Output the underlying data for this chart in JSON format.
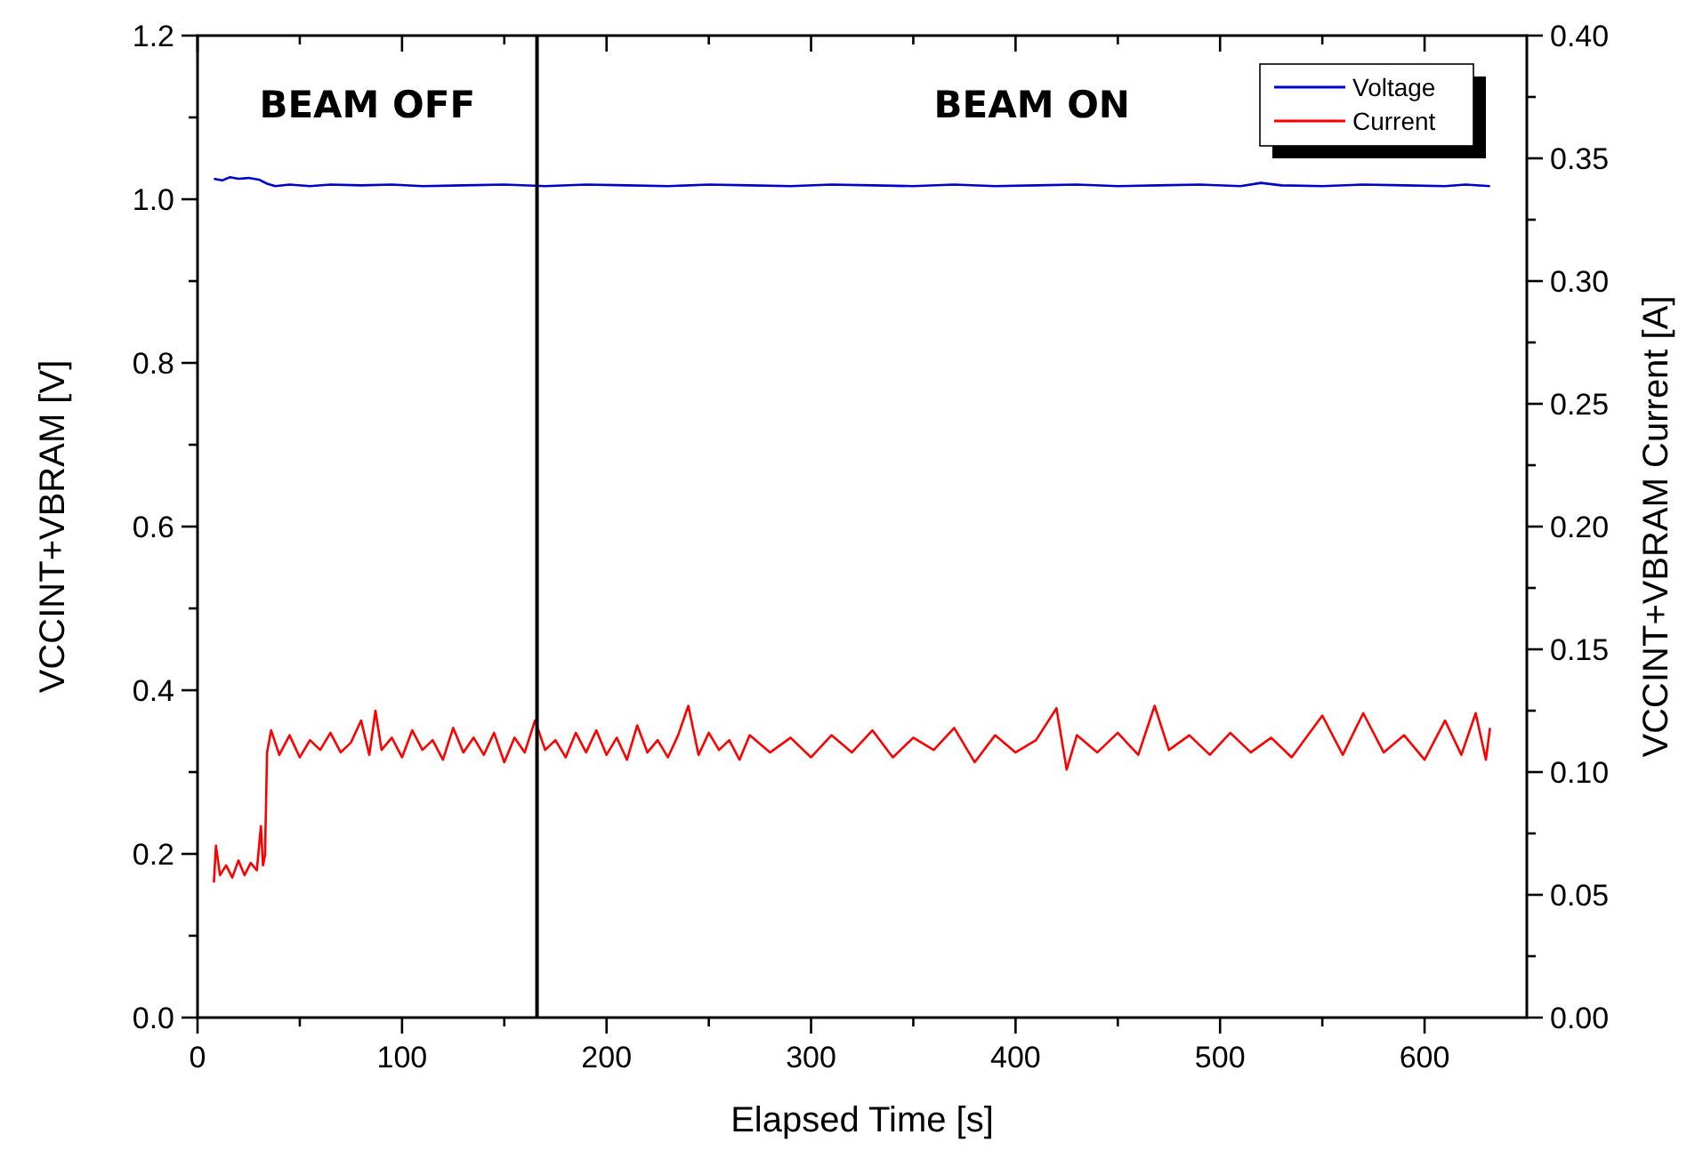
{
  "chart_data": {
    "type": "line",
    "xlabel": "Elapsed Time [s]",
    "ylabel": "VCCINT+VBRAM [V]",
    "y2label": "VCCINT+VBRAM Current [A]",
    "xlim": [
      0,
      650
    ],
    "xticks": [
      0,
      {
        "value": 50,
        "label": null
      },
      100,
      {
        "value": 150,
        "label": null
      },
      200,
      {
        "value": 250,
        "label": null
      },
      300,
      {
        "value": 350,
        "label": null
      },
      400,
      {
        "value": 450,
        "label": null
      },
      500,
      {
        "value": 550,
        "label": null
      },
      600
    ],
    "ylim": [
      0,
      1.2
    ],
    "yticks": [
      {
        "value": 0,
        "label": "0.0"
      },
      {
        "value": 0.1,
        "label": null
      },
      0.2,
      {
        "value": 0.3,
        "label": null
      },
      0.4,
      {
        "value": 0.5,
        "label": null
      },
      0.6,
      {
        "value": 0.7,
        "label": null
      },
      0.8,
      {
        "value": 0.9,
        "label": null
      },
      {
        "value": 1.0,
        "label": "1.0"
      },
      {
        "value": 1.1,
        "label": null
      },
      1.2
    ],
    "y2lim": [
      0,
      0.4
    ],
    "y2ticks": [
      {
        "value": 0,
        "label": "0.00"
      },
      {
        "value": 0.025,
        "label": null
      },
      0.05,
      {
        "value": 0.075,
        "label": null
      },
      {
        "value": 0.1,
        "label": "0.10"
      },
      {
        "value": 0.125,
        "label": null
      },
      0.15,
      {
        "value": 0.175,
        "label": null
      },
      {
        "value": 0.2,
        "label": "0.20"
      },
      {
        "value": 0.225,
        "label": null
      },
      0.25,
      {
        "value": 0.275,
        "label": null
      },
      {
        "value": 0.3,
        "label": "0.30"
      },
      {
        "value": 0.325,
        "label": null
      },
      0.35,
      {
        "value": 0.375,
        "label": null
      },
      {
        "value": 0.4,
        "label": "0.40"
      }
    ],
    "series": [
      {
        "name": "Voltage",
        "color": "#0000cc",
        "x": [
          8,
          12,
          16,
          20,
          25,
          30,
          34,
          38,
          45,
          55,
          65,
          80,
          95,
          110,
          130,
          150,
          170,
          190,
          210,
          230,
          250,
          270,
          290,
          310,
          330,
          350,
          370,
          390,
          410,
          430,
          450,
          470,
          490,
          510,
          520,
          530,
          550,
          570,
          590,
          610,
          620,
          632
        ],
        "values": [
          1.025,
          1.023,
          1.027,
          1.025,
          1.026,
          1.024,
          1.019,
          1.016,
          1.018,
          1.016,
          1.018,
          1.017,
          1.018,
          1.016,
          1.017,
          1.018,
          1.016,
          1.018,
          1.017,
          1.016,
          1.018,
          1.017,
          1.016,
          1.018,
          1.017,
          1.016,
          1.018,
          1.016,
          1.017,
          1.018,
          1.016,
          1.017,
          1.018,
          1.016,
          1.02,
          1.017,
          1.016,
          1.018,
          1.017,
          1.016,
          1.018,
          1.016
        ]
      },
      {
        "name": "Current",
        "color": "#ff0000",
        "axis": "y2",
        "x": [
          8,
          9,
          11,
          14,
          17,
          20,
          23,
          26,
          29,
          31,
          32,
          33,
          34,
          36,
          40,
          45,
          50,
          55,
          60,
          65,
          70,
          75,
          80,
          84,
          87,
          90,
          95,
          100,
          105,
          110,
          115,
          120,
          125,
          130,
          135,
          140,
          145,
          150,
          155,
          160,
          165,
          170,
          175,
          180,
          185,
          190,
          195,
          200,
          205,
          210,
          215,
          220,
          225,
          230,
          235,
          240,
          245,
          250,
          255,
          260,
          265,
          270,
          280,
          290,
          300,
          310,
          320,
          330,
          340,
          350,
          360,
          370,
          380,
          390,
          400,
          410,
          420,
          425,
          430,
          440,
          450,
          460,
          468,
          475,
          485,
          495,
          505,
          515,
          525,
          535,
          550,
          560,
          570,
          580,
          590,
          600,
          610,
          618,
          625,
          630,
          632
        ],
        "values": [
          0.055,
          0.07,
          0.058,
          0.062,
          0.057,
          0.064,
          0.058,
          0.063,
          0.06,
          0.078,
          0.062,
          0.066,
          0.108,
          0.117,
          0.107,
          0.115,
          0.106,
          0.113,
          0.109,
          0.116,
          0.108,
          0.112,
          0.121,
          0.107,
          0.125,
          0.109,
          0.114,
          0.106,
          0.117,
          0.109,
          0.113,
          0.105,
          0.118,
          0.108,
          0.114,
          0.107,
          0.116,
          0.104,
          0.114,
          0.108,
          0.121,
          0.109,
          0.113,
          0.106,
          0.116,
          0.108,
          0.117,
          0.107,
          0.114,
          0.105,
          0.119,
          0.108,
          0.113,
          0.106,
          0.115,
          0.127,
          0.107,
          0.116,
          0.109,
          0.113,
          0.105,
          0.115,
          0.108,
          0.114,
          0.106,
          0.115,
          0.108,
          0.117,
          0.106,
          0.114,
          0.109,
          0.118,
          0.104,
          0.115,
          0.108,
          0.113,
          0.126,
          0.101,
          0.115,
          0.108,
          0.116,
          0.107,
          0.127,
          0.109,
          0.115,
          0.107,
          0.116,
          0.108,
          0.114,
          0.106,
          0.123,
          0.107,
          0.124,
          0.108,
          0.115,
          0.105,
          0.121,
          0.107,
          0.124,
          0.105,
          0.118
        ]
      }
    ],
    "ref_lines": [
      {
        "axis": "x",
        "value": 166,
        "color": "#000000"
      }
    ],
    "annotations": [
      "BEAM OFF",
      "BEAM ON"
    ],
    "legend": "top right",
    "grid": false,
    "marker": "none",
    "line_style": "solid"
  }
}
